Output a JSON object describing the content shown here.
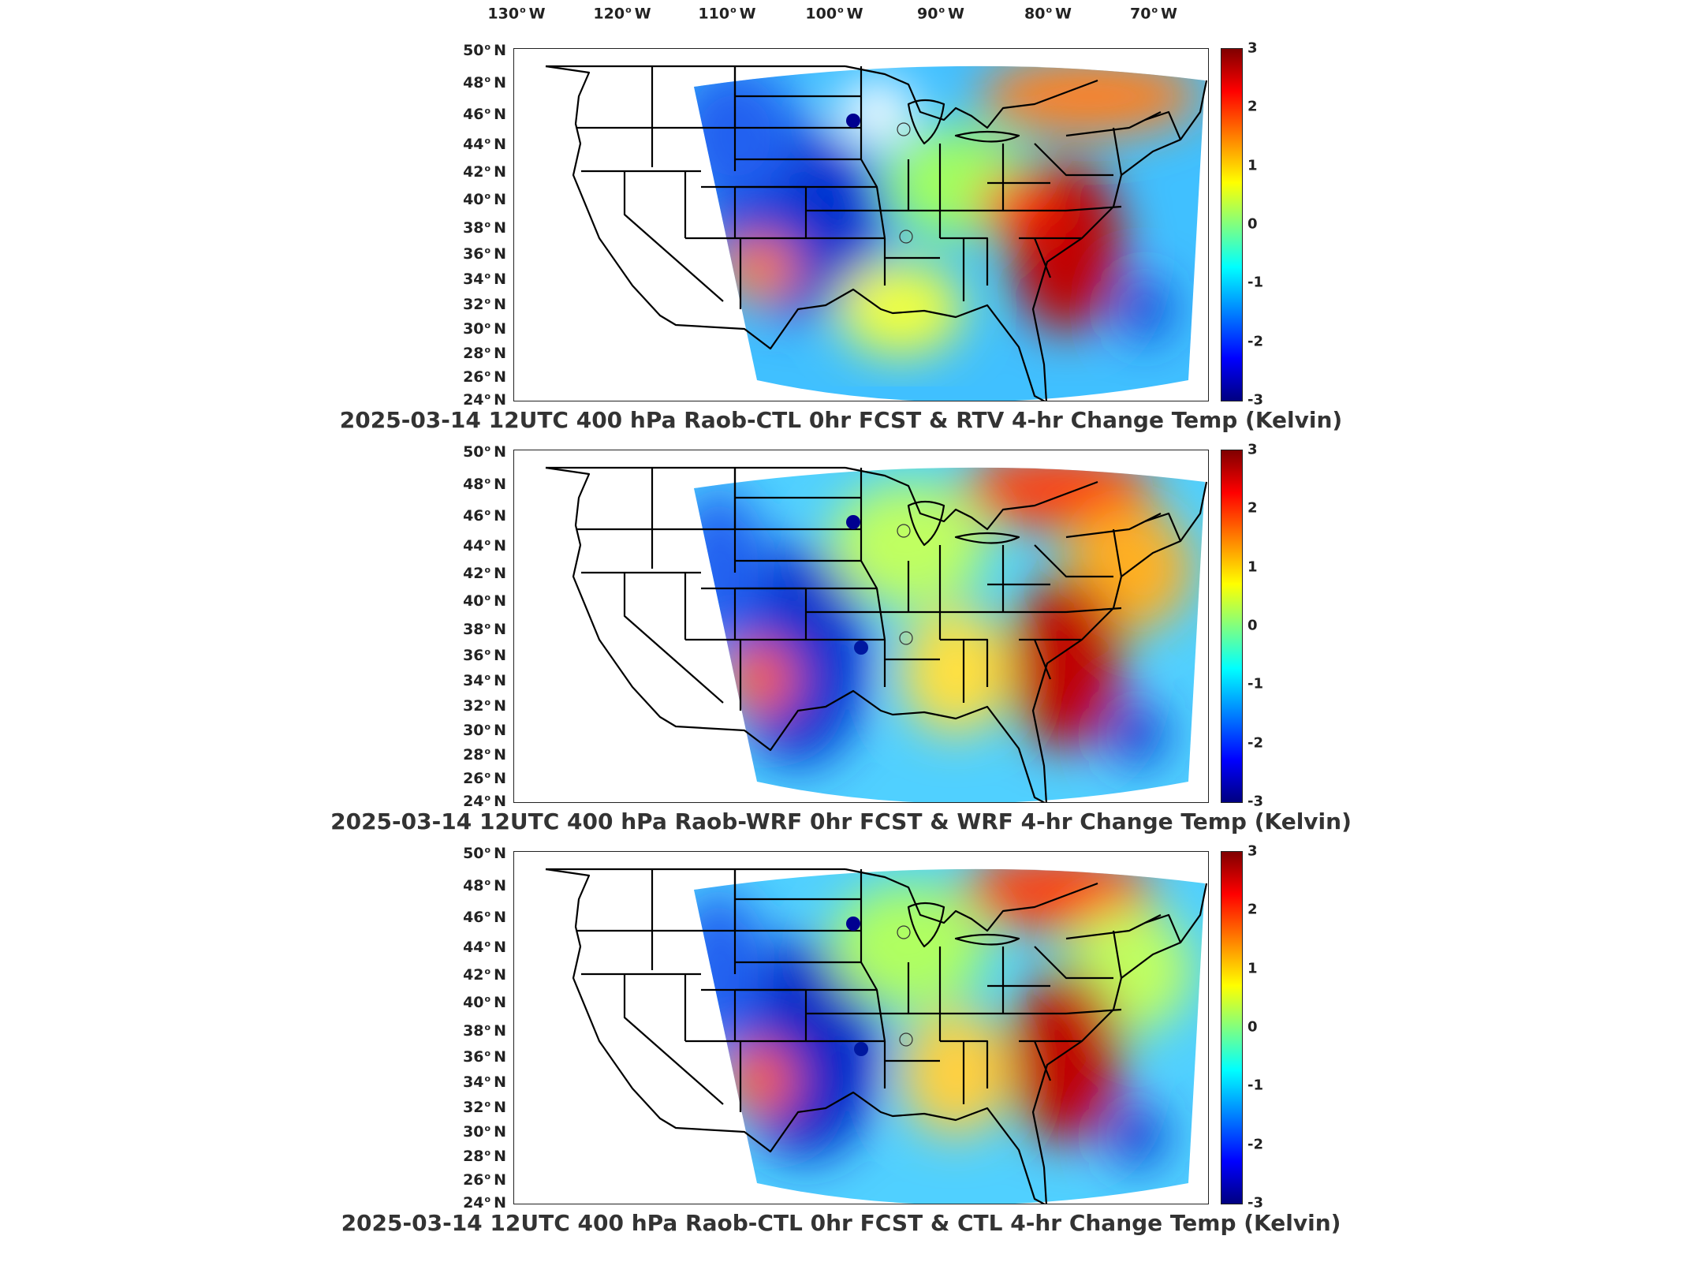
{
  "lon_labels": [
    {
      "deg": "130",
      "dir": "W"
    },
    {
      "deg": "120",
      "dir": "W"
    },
    {
      "deg": "110",
      "dir": "W"
    },
    {
      "deg": "100",
      "dir": "W"
    },
    {
      "deg": "90",
      "dir": "W"
    },
    {
      "deg": "80",
      "dir": "W"
    },
    {
      "deg": "70",
      "dir": "W"
    }
  ],
  "lat_labels": [
    {
      "deg": "50",
      "dir": "N"
    },
    {
      "deg": "48",
      "dir": "N"
    },
    {
      "deg": "46",
      "dir": "N"
    },
    {
      "deg": "44",
      "dir": "N"
    },
    {
      "deg": "42",
      "dir": "N"
    },
    {
      "deg": "40",
      "dir": "N"
    },
    {
      "deg": "38",
      "dir": "N"
    },
    {
      "deg": "36",
      "dir": "N"
    },
    {
      "deg": "34",
      "dir": "N"
    },
    {
      "deg": "32",
      "dir": "N"
    },
    {
      "deg": "30",
      "dir": "N"
    },
    {
      "deg": "28",
      "dir": "N"
    },
    {
      "deg": "26",
      "dir": "N"
    },
    {
      "deg": "24",
      "dir": "N"
    }
  ],
  "colorbar": {
    "ticks": [
      "3",
      "2",
      "1",
      "0",
      "-1",
      "-2",
      "-3"
    ],
    "colors": [
      "#800000",
      "#ff0000",
      "#ff8000",
      "#ffff00",
      "#80ff80",
      "#00ffff",
      "#0080ff",
      "#0000ff",
      "#000080"
    ]
  },
  "panels": [
    {
      "title": "2025-03-14 12UTC 400 hPa Raob-CTL 0hr FCST & RTV 4-hr Change Temp (Kelvin)"
    },
    {
      "title": "2025-03-14 12UTC 400 hPa Raob-WRF 0hr FCST & WRF 4-hr Change Temp (Kelvin)"
    },
    {
      "title": "2025-03-14 12UTC 400 hPa Raob-CTL 0hr FCST & CTL 4-hr Change Temp (Kelvin)"
    }
  ]
}
